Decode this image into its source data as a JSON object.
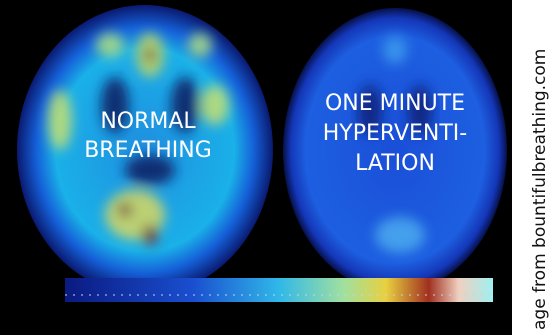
{
  "left_scan": {
    "lines": [
      "NORMAL",
      "BREATHING"
    ]
  },
  "right_scan": {
    "lines": [
      "ONE MINUTE",
      "HYPERVENTI-",
      "LATION"
    ]
  },
  "credit": "age from bountifulbreathing.com"
}
